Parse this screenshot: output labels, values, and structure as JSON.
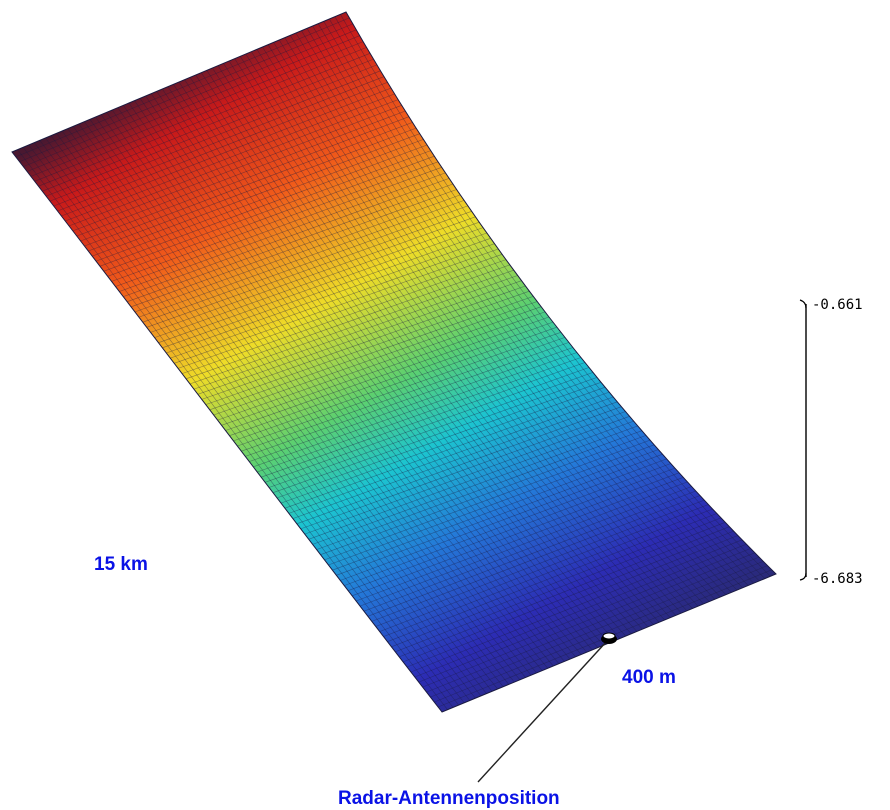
{
  "colors": {
    "label_blue": "#0a12e6",
    "colormap": [
      "#3a1a3a",
      "#d41e1e",
      "#f07820",
      "#f0e030",
      "#60d060",
      "#20c8d0",
      "#2080d8",
      "#2a2ab0",
      "#2a2a70"
    ],
    "grid_lines": "#1a1a40",
    "scale_bar": "#000000"
  },
  "labels": {
    "length_label": "15 km",
    "width_label": "400 m",
    "antenna_label": "Radar-Antennenposition"
  },
  "scale": {
    "max_label": "-0.661",
    "min_label": "-6.683"
  },
  "mesh": {
    "rows": 110,
    "cols": 60
  },
  "markers": {
    "antenna_icon": "radar-antenna-icon"
  }
}
